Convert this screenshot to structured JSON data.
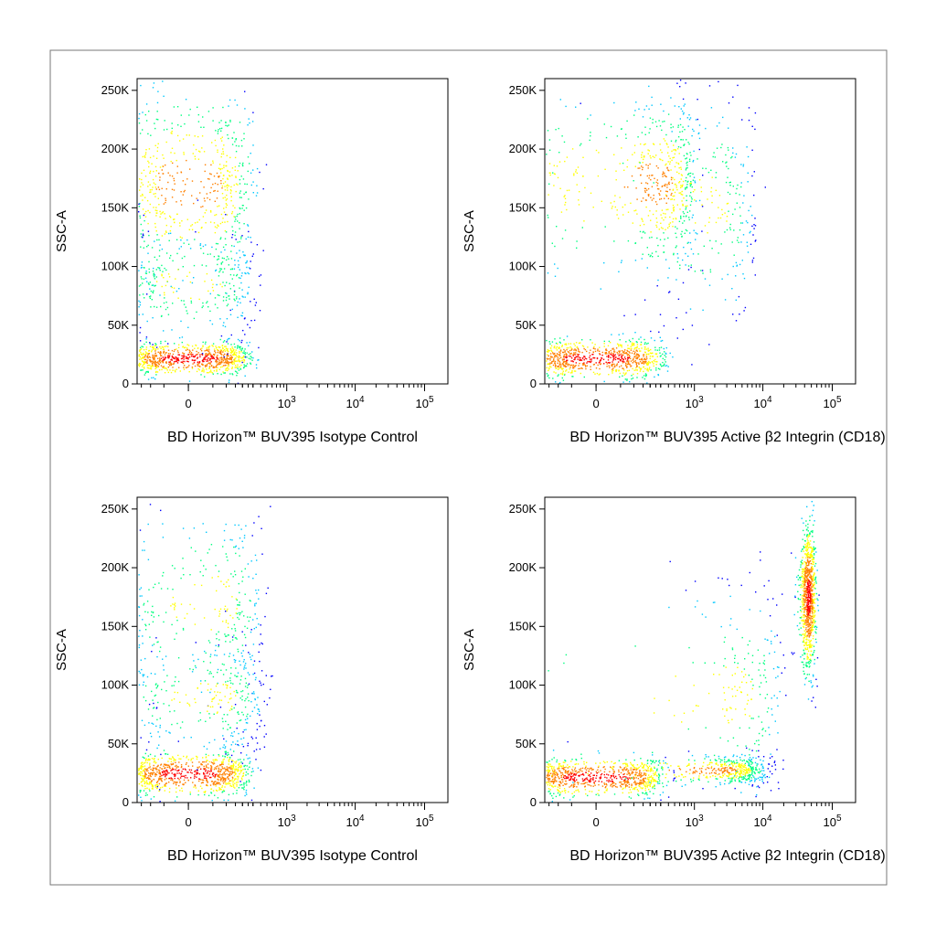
{
  "chart_data": [
    {
      "type": "scatter",
      "subtype": "flow-cytometry-density-dot-plot",
      "xlabel": "BD Horizon™ BUV395 Isotype Control",
      "ylabel": "SSC-A",
      "x_scale": "biexponential",
      "x_ticks": [
        {
          "value": 0,
          "label": "0"
        },
        {
          "value": 1000,
          "label": "10",
          "exp": "3"
        },
        {
          "value": 10000,
          "label": "10",
          "exp": "4"
        },
        {
          "value": 100000,
          "label": "10",
          "exp": "5"
        }
      ],
      "y_ticks": [
        "0",
        "50K",
        "100K",
        "150K",
        "200K",
        "250K"
      ],
      "ylim": [
        0,
        260000
      ],
      "grid": false,
      "populations": [
        {
          "x_center": 0,
          "y_center": 22000,
          "x_spread": 120,
          "y_spread": 7000,
          "density": "high"
        },
        {
          "x_center": 0,
          "y_center": 170000,
          "x_spread": 150,
          "y_spread": 40000,
          "density": "medium"
        },
        {
          "x_center": 0,
          "y_center": 85000,
          "x_spread": 150,
          "y_spread": 25000,
          "density": "low"
        }
      ]
    },
    {
      "type": "scatter",
      "subtype": "flow-cytometry-density-dot-plot",
      "xlabel": "BD Horizon™ BUV395 Active β2 Integrin (CD18)",
      "ylabel": "SSC-A",
      "x_scale": "biexponential",
      "x_ticks": [
        {
          "value": 0,
          "label": "0"
        },
        {
          "value": 1000,
          "label": "10",
          "exp": "3"
        },
        {
          "value": 10000,
          "label": "10",
          "exp": "4"
        },
        {
          "value": 100000,
          "label": "10",
          "exp": "5"
        }
      ],
      "y_ticks": [
        "0",
        "50K",
        "100K",
        "150K",
        "200K",
        "250K"
      ],
      "ylim": [
        0,
        260000
      ],
      "grid": false,
      "populations": [
        {
          "x_center": 0,
          "y_center": 22000,
          "x_spread": 150,
          "y_spread": 8000,
          "density": "high"
        },
        {
          "x_center": 250,
          "y_center": 170000,
          "x_spread": 400,
          "y_spread": 35000,
          "density": "medium"
        },
        {
          "x_center": 1500,
          "y_center": 150000,
          "x_spread": 3000,
          "y_spread": 50000,
          "density": "low"
        }
      ]
    },
    {
      "type": "scatter",
      "subtype": "flow-cytometry-density-dot-plot",
      "xlabel": "BD Horizon™ BUV395 Isotype Control",
      "ylabel": "SSC-A",
      "x_scale": "biexponential",
      "x_ticks": [
        {
          "value": 0,
          "label": "0"
        },
        {
          "value": 1000,
          "label": "10",
          "exp": "3"
        },
        {
          "value": 10000,
          "label": "10",
          "exp": "4"
        },
        {
          "value": 100000,
          "label": "10",
          "exp": "5"
        }
      ],
      "y_ticks": [
        "0",
        "50K",
        "100K",
        "150K",
        "200K",
        "250K"
      ],
      "ylim": [
        0,
        260000
      ],
      "grid": false,
      "populations": [
        {
          "x_center": 0,
          "y_center": 25000,
          "x_spread": 120,
          "y_spread": 9000,
          "density": "high"
        },
        {
          "x_center": 60,
          "y_center": 170000,
          "x_spread": 180,
          "y_spread": 45000,
          "density": "low"
        },
        {
          "x_center": 60,
          "y_center": 90000,
          "x_spread": 180,
          "y_spread": 25000,
          "density": "low"
        }
      ]
    },
    {
      "type": "scatter",
      "subtype": "flow-cytometry-density-dot-plot",
      "xlabel": "BD Horizon™ BUV395 Active β2 Integrin (CD18)",
      "ylabel": "SSC-A",
      "x_scale": "biexponential",
      "x_ticks": [
        {
          "value": 0,
          "label": "0"
        },
        {
          "value": 1000,
          "label": "10",
          "exp": "3"
        },
        {
          "value": 10000,
          "label": "10",
          "exp": "4"
        },
        {
          "value": 100000,
          "label": "10",
          "exp": "5"
        }
      ],
      "y_ticks": [
        "0",
        "50K",
        "100K",
        "150K",
        "200K",
        "250K"
      ],
      "ylim": [
        0,
        260000
      ],
      "grid": false,
      "populations": [
        {
          "x_center": 0,
          "y_center": 22000,
          "x_spread": 150,
          "y_spread": 8000,
          "density": "high"
        },
        {
          "x_center": 2000,
          "y_center": 28000,
          "x_spread": 4000,
          "y_spread": 6000,
          "density": "medium"
        },
        {
          "x_center": 45000,
          "y_center": 175000,
          "x_spread": 6000,
          "y_spread": 30000,
          "density": "high"
        },
        {
          "x_center": 3000,
          "y_center": 90000,
          "x_spread": 8000,
          "y_spread": 50000,
          "density": "low"
        }
      ]
    }
  ],
  "colors": {
    "density_low": "#0000ff",
    "density_mid_low": "#00c8ff",
    "density_mid": "#00ff80",
    "density_mid_high": "#ffff00",
    "density_high": "#ff8000",
    "density_peak": "#ff0000"
  }
}
